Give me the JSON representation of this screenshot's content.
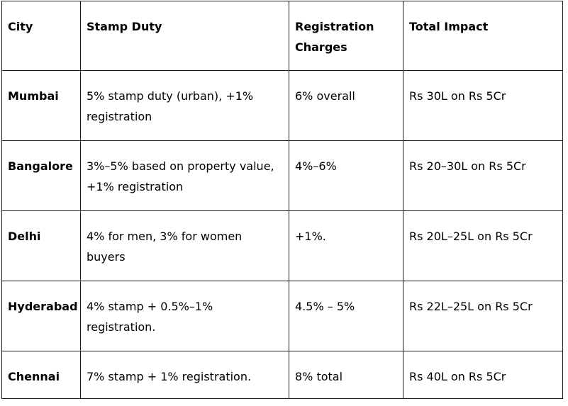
{
  "table": {
    "headers": [
      "City",
      "Stamp Duty",
      "Registration Charges",
      "Total Impact"
    ],
    "rows": [
      {
        "city": "Mumbai",
        "stamp_duty": "5% stamp duty (urban), +1% registration",
        "registration": "6% overall",
        "impact": "Rs 30L on Rs 5Cr"
      },
      {
        "city": "Bangalore",
        "stamp_duty": "3%–5% based on property value, +1% registration",
        "registration": "4%–6%",
        "impact": "Rs 20–30L on Rs 5Cr"
      },
      {
        "city": "Delhi",
        "stamp_duty": "4% for men, 3% for women buyers",
        "registration": "+1%.",
        "impact": "Rs 20L–25L on Rs 5Cr"
      },
      {
        "city": "Hyderabad",
        "stamp_duty": "4% stamp + 0.5%–1% registration.",
        "registration": "4.5% – 5%",
        "impact": "Rs 22L–25L on Rs 5Cr"
      },
      {
        "city": "Chennai",
        "stamp_duty": "7% stamp + 1% registration.",
        "registration": "8% total",
        "impact": "Rs 40L on Rs 5Cr"
      }
    ]
  }
}
